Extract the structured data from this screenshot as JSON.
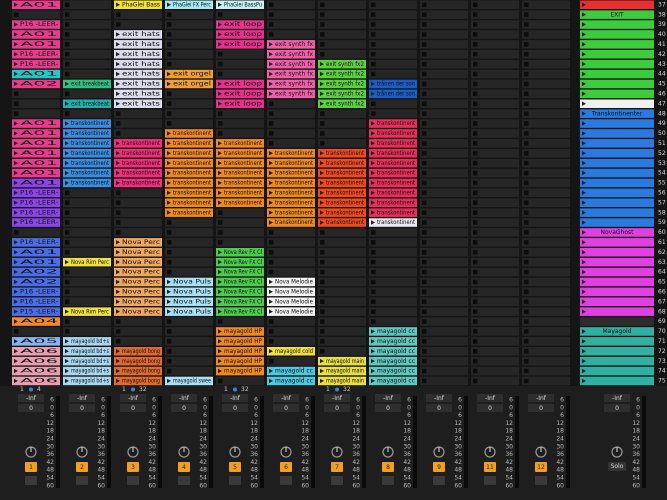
{
  "tracks": [
    {
      "number": "1",
      "loop": [
        "1",
        "4"
      ],
      "volume": "-Inf",
      "pan": "0",
      "clips": [
        {
          "scenes": [
            37
          ],
          "label": "A01",
          "color": "#e83c8c"
        },
        {
          "scenes": [
            39
          ],
          "label": "P16 -LEER-",
          "color": "#e83c8c"
        },
        {
          "scenes": [
            40,
            41
          ],
          "label": "A01",
          "color": "#e83c8c"
        },
        {
          "scenes": [
            42,
            43
          ],
          "label": "P16 -LEER-",
          "color": "#e83c8c"
        },
        {
          "scenes": [
            44
          ],
          "label": "A01",
          "color": "#22c8c8"
        },
        {
          "scenes": [
            45
          ],
          "label": "A02",
          "color": "#e83c8c"
        },
        {
          "scenes": [
            49,
            50,
            51,
            52,
            53,
            54
          ],
          "label": "A01",
          "color": "#e83c8c"
        },
        {
          "scenes": [
            55
          ],
          "label": "A01",
          "color": "#8a44e8"
        },
        {
          "scenes": [
            56,
            57,
            58,
            59
          ],
          "label": "P16 -LEER-",
          "color": "#8a44e8"
        },
        {
          "scenes": [
            61
          ],
          "label": "P16 -LEER-",
          "color": "#4a6ee8"
        },
        {
          "scenes": [
            62,
            63
          ],
          "label": "A01",
          "color": "#4a6ee8"
        },
        {
          "scenes": [
            64,
            65
          ],
          "label": "A02",
          "color": "#4a6ee8"
        },
        {
          "scenes": [
            66,
            67
          ],
          "label": "P16 -LEER-",
          "color": "#4a6ee8"
        },
        {
          "scenes": [
            68
          ],
          "label": "P15 -LEER-",
          "color": "#4a6ee8"
        },
        {
          "scenes": [
            69
          ],
          "label": "A04",
          "color": "#f08a30"
        },
        {
          "scenes": [
            71
          ],
          "label": "A05",
          "color": "#8ab4f0"
        },
        {
          "scenes": [
            72,
            73,
            74,
            75
          ],
          "label": "A06",
          "color": "#e8a0b0"
        }
      ]
    },
    {
      "number": "2",
      "volume": "-Inf",
      "pan": "0",
      "clips": [
        {
          "scenes": [
            45
          ],
          "label": "exit breakbeat",
          "color": "#2ec27e"
        },
        {
          "scenes": [
            47
          ],
          "label": "exit breakbeat",
          "color": "#22b0b0"
        },
        {
          "scenes": [
            49,
            50,
            51,
            52,
            53,
            54,
            55
          ],
          "label": "transkontinent",
          "color": "#3a8ee0"
        },
        {
          "scenes": [
            63
          ],
          "label": "Nova Rim Perc",
          "color": "#f0e040"
        },
        {
          "scenes": [
            68
          ],
          "label": "Nova Rim Perc",
          "color": "#f0e040"
        },
        {
          "scenes": [
            71,
            72,
            73,
            74,
            75
          ],
          "label": "mayagold bd+s",
          "color": "#a8d8f0"
        }
      ]
    },
    {
      "number": "3",
      "loop": [
        "1",
        "32"
      ],
      "volume": "-Inf",
      "pan": "0",
      "clips": [
        {
          "scenes": [
            37
          ],
          "label": "PhaGlei Bass",
          "color": "#f0e040"
        },
        {
          "scenes": [
            40,
            41,
            42,
            43,
            44,
            45,
            46,
            47
          ],
          "label": "exit hats",
          "color": "#dcdcec"
        },
        {
          "scenes": [
            51,
            52,
            53,
            54,
            55
          ],
          "label": "transkontinent",
          "color": "#f0307a"
        },
        {
          "scenes": [
            61,
            62,
            63,
            64,
            65,
            66,
            67,
            68
          ],
          "label": "Nova Perc",
          "color": "#f0a860"
        },
        {
          "scenes": [
            72,
            73,
            74,
            75
          ],
          "label": "mayagold bong",
          "color": "#e06a30"
        }
      ]
    },
    {
      "number": "4",
      "volume": "-Inf",
      "pan": "0",
      "clips": [
        {
          "scenes": [
            37
          ],
          "label": "PhaGlei FX Perc",
          "color": "#a8e8f0"
        },
        {
          "scenes": [
            44,
            45
          ],
          "label": "exit orgel",
          "color": "#f0a030"
        },
        {
          "scenes": [
            50,
            51,
            52,
            53,
            54,
            55,
            56,
            57,
            58
          ],
          "label": "transkontinent",
          "color": "#f08a20"
        },
        {
          "scenes": [
            65,
            66,
            67,
            68
          ],
          "label": "Nova Puls",
          "color": "#a8e0f4"
        },
        {
          "scenes": [
            75
          ],
          "label": "mayagold swee",
          "color": "#a8e0f4"
        }
      ]
    },
    {
      "number": "5",
      "loop": [
        "1",
        "32"
      ],
      "volume": "-Inf",
      "pan": "0",
      "clips": [
        {
          "scenes": [
            37
          ],
          "label": "PhaGlei BassPu",
          "color": "#c8f0f0"
        },
        {
          "scenes": [
            39,
            40,
            41
          ],
          "label": "exit loop",
          "color": "#e8308c"
        },
        {
          "scenes": [
            45,
            46,
            47
          ],
          "label": "exit loop",
          "color": "#e8308c"
        },
        {
          "scenes": [
            51,
            52,
            53,
            54,
            55,
            56,
            57
          ],
          "label": "transkontinent",
          "color": "#f08a20"
        },
        {
          "scenes": [
            62,
            63,
            64,
            65,
            66,
            67,
            68
          ],
          "label": "Nova Rev FX Cl",
          "color": "#4ccc4c"
        },
        {
          "scenes": [
            70,
            71,
            72,
            73,
            74
          ],
          "label": "mayagold HP",
          "color": "#f08a20"
        }
      ]
    },
    {
      "number": "6",
      "volume": "-Inf",
      "pan": "0",
      "clips": [
        {
          "scenes": [
            41,
            42,
            43,
            44,
            45,
            46
          ],
          "label": "exit synth fx",
          "color": "#f060a8"
        },
        {
          "scenes": [
            52,
            53,
            54,
            55,
            56,
            57,
            58,
            59
          ],
          "label": "transkontinent",
          "color": "#f08a20"
        },
        {
          "scenes": [
            65,
            66,
            67,
            68
          ],
          "label": "Nova Melodie",
          "color": "#f4f4f4"
        },
        {
          "scenes": [
            72
          ],
          "label": "mayagold cold",
          "color": "#f0e040"
        },
        {
          "scenes": [
            74,
            75
          ],
          "label": "mayagold cc",
          "color": "#50c8e0"
        }
      ]
    },
    {
      "number": "7",
      "loop": [
        "1",
        "32"
      ],
      "volume": "-Inf",
      "pan": "0",
      "clips": [
        {
          "scenes": [
            43,
            44,
            45,
            46,
            47
          ],
          "label": "exit synth fx2",
          "color": "#5cd040"
        },
        {
          "scenes": [
            52,
            53,
            54,
            55,
            56,
            57,
            58,
            59
          ],
          "label": "transkontinent",
          "color": "#f04a20"
        },
        {
          "scenes": [
            73,
            74,
            75
          ],
          "label": "mayagold main",
          "color": "#e8e040"
        }
      ]
    },
    {
      "number": "8",
      "volume": "-Inf",
      "pan": "0",
      "clips": [
        {
          "scenes": [
            45,
            46
          ],
          "label": "trånen der son",
          "color": "#1a5ec8"
        },
        {
          "scenes": [
            49,
            50,
            51,
            52,
            53,
            54,
            55,
            56,
            57,
            58
          ],
          "label": "transkontinent",
          "color": "#e8305a"
        },
        {
          "scenes": [
            59
          ],
          "label": "transkontinent",
          "color": "#e8e8f0"
        },
        {
          "scenes": [
            70,
            71,
            72,
            73,
            74,
            75
          ],
          "label": "mayagold cc",
          "color": "#60c8c0"
        }
      ]
    },
    {
      "number": "9",
      "volume": "-Inf",
      "pan": "0",
      "clips": []
    },
    {
      "number": "11",
      "volume": "-Inf",
      "pan": "0",
      "clips": []
    },
    {
      "number": "12",
      "volume": "-Inf",
      "pan": "0",
      "clips": []
    }
  ],
  "master": {
    "volume": "-Inf",
    "pan": "0",
    "solo": "Solo",
    "scene_groups": [
      {
        "scenes": [
          37
        ],
        "color": "#e83030"
      },
      {
        "scenes": [
          38,
          39,
          40,
          41,
          42,
          43,
          44,
          45,
          46
        ],
        "label": "EXIT",
        "color": "#3ccc3c"
      },
      {
        "scenes": [
          47
        ],
        "color": "#f0f0f0"
      },
      {
        "scenes": [
          48,
          49,
          50,
          51,
          52,
          53,
          54,
          55,
          56,
          57,
          58,
          59
        ],
        "label": "Transkontinenter",
        "color": "#2a7ae0"
      },
      {
        "scenes": [
          60,
          61,
          62,
          63,
          64,
          65,
          66,
          67,
          68
        ],
        "label": "NovaGhost",
        "color": "#e040e0"
      },
      {
        "scenes": [
          70,
          71,
          72,
          73,
          74,
          75
        ],
        "label": "Mayagold",
        "color": "#30b0a0"
      }
    ]
  },
  "scene_numbers": [
    37,
    38,
    39,
    40,
    41,
    42,
    43,
    44,
    45,
    46,
    47,
    48,
    49,
    50,
    51,
    52,
    53,
    54,
    55,
    56,
    57,
    58,
    59,
    60,
    61,
    62,
    63,
    64,
    65,
    66,
    67,
    68,
    69,
    70,
    71,
    72,
    73,
    74,
    75
  ],
  "meter_scale": [
    "6",
    "0",
    "6",
    "12",
    "18",
    "24",
    "30",
    "36",
    "42",
    "48",
    "54",
    "60"
  ]
}
